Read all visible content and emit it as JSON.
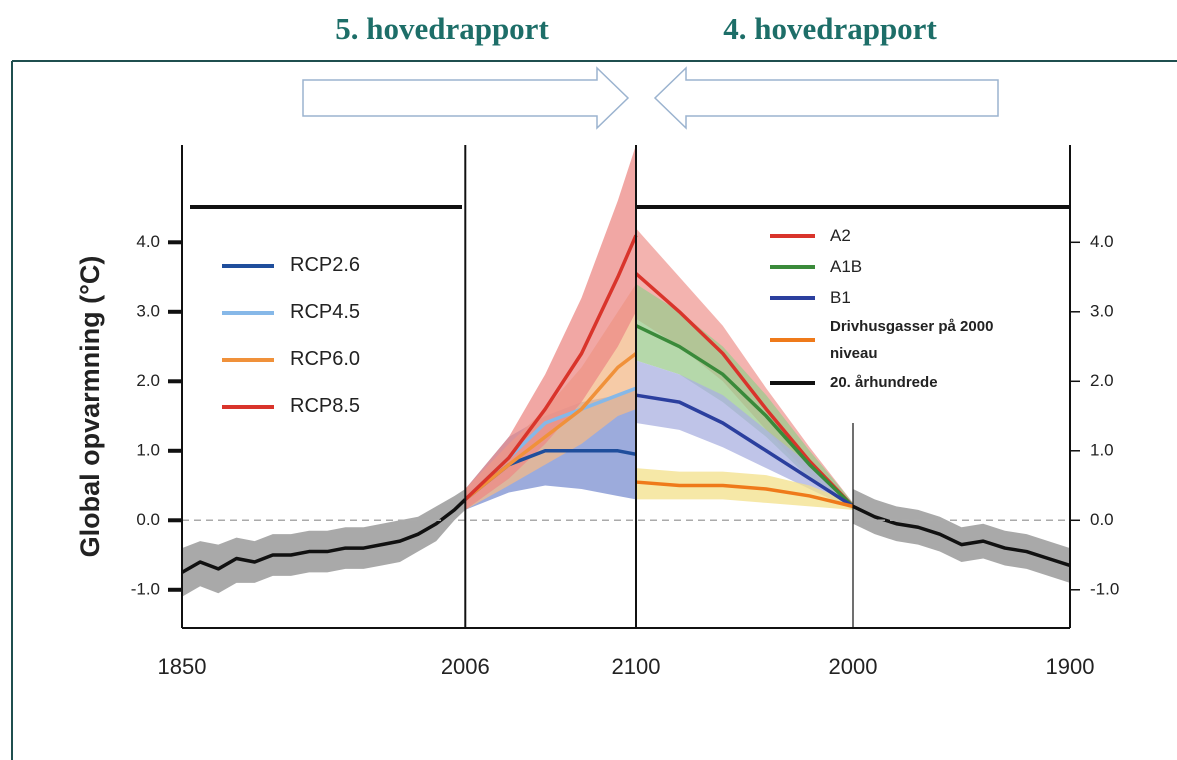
{
  "headers": [
    "5. hovedrapport",
    "4. hovedrapport"
  ],
  "chart_data": [
    {
      "type": "line",
      "ylabel": "Global opvarmning (°C)",
      "xlim": [
        1850,
        2100
      ],
      "ylim": [
        -1.55,
        5.4
      ],
      "xticks": [
        1850,
        2006,
        2100
      ],
      "yticks": [
        {
          "value": -1,
          "label": "-1.0"
        },
        {
          "value": 0,
          "label": "0.0"
        },
        {
          "value": 1,
          "label": "1.0"
        },
        {
          "value": 2,
          "label": "2.0"
        },
        {
          "value": 3,
          "label": "3.0"
        },
        {
          "value": 4,
          "label": "4.0"
        }
      ],
      "legend": "upper left",
      "series": [
        {
          "color": "#111111",
          "band_color": "#8c8c8c",
          "x": [
            1850,
            1860,
            1870,
            1880,
            1890,
            1900,
            1910,
            1920,
            1930,
            1940,
            1950,
            1960,
            1970,
            1980,
            1990,
            2000,
            2006
          ],
          "values": [
            -0.75,
            -0.6,
            -0.7,
            -0.55,
            -0.6,
            -0.5,
            -0.5,
            -0.45,
            -0.45,
            -0.4,
            -0.4,
            -0.35,
            -0.3,
            -0.2,
            -0.05,
            0.15,
            0.3
          ],
          "lower": [
            -1.1,
            -0.95,
            -1.05,
            -0.9,
            -0.9,
            -0.8,
            -0.8,
            -0.75,
            -0.75,
            -0.7,
            -0.7,
            -0.65,
            -0.6,
            -0.45,
            -0.3,
            0.0,
            0.15
          ],
          "upper": [
            -0.4,
            -0.3,
            -0.35,
            -0.25,
            -0.3,
            -0.2,
            -0.2,
            -0.15,
            -0.15,
            -0.1,
            -0.1,
            -0.05,
            0.0,
            0.05,
            0.2,
            0.35,
            0.45
          ]
        },
        {
          "name": "RCP2.6",
          "color": "#1f4e9c",
          "band_color": "#7b8fd0",
          "x": [
            2006,
            2030,
            2050,
            2070,
            2090,
            2100
          ],
          "values": [
            0.3,
            0.8,
            1.0,
            1.0,
            1.0,
            0.95
          ],
          "lower": [
            0.15,
            0.4,
            0.5,
            0.45,
            0.35,
            0.3
          ],
          "upper": [
            0.45,
            1.2,
            1.5,
            1.7,
            1.8,
            1.9
          ]
        },
        {
          "name": "RCP4.5",
          "color": "#86b8e8",
          "x": [
            2006,
            2030,
            2050,
            2070,
            2090,
            2100
          ],
          "values": [
            0.3,
            0.9,
            1.4,
            1.6,
            1.8,
            1.9
          ]
        },
        {
          "name": "RCP6.0",
          "color": "#f0913a",
          "band_color": "#f3b98a",
          "x": [
            2006,
            2030,
            2050,
            2070,
            2090,
            2100
          ],
          "values": [
            0.3,
            0.8,
            1.2,
            1.6,
            2.2,
            2.4
          ],
          "lower": [
            0.15,
            0.5,
            0.8,
            1.1,
            1.5,
            1.6
          ],
          "upper": [
            0.45,
            1.1,
            1.6,
            2.2,
            3.0,
            3.4
          ]
        },
        {
          "name": "RCP8.5",
          "color": "#d9342b",
          "band_color": "#ec8a86",
          "x": [
            2006,
            2030,
            2050,
            2070,
            2090,
            2100
          ],
          "values": [
            0.3,
            0.9,
            1.6,
            2.4,
            3.5,
            4.1
          ],
          "lower": [
            0.15,
            0.6,
            1.1,
            1.7,
            2.5,
            3.0
          ],
          "upper": [
            0.45,
            1.2,
            2.1,
            3.2,
            4.6,
            5.4
          ]
        }
      ]
    },
    {
      "type": "line",
      "xlim": [
        2100,
        1900
      ],
      "ylim": [
        -1.55,
        5.4
      ],
      "xticks": [
        2000,
        1900
      ],
      "yticks": [
        {
          "value": -1,
          "label": "-1.0"
        },
        {
          "value": 0,
          "label": "0.0"
        },
        {
          "value": 1,
          "label": "1.0"
        },
        {
          "value": 2,
          "label": "2.0"
        },
        {
          "value": 3,
          "label": "3.0"
        },
        {
          "value": 4,
          "label": "4.0"
        }
      ],
      "legend": "upper right",
      "series": [
        {
          "name": "A2",
          "color": "#d9342b",
          "band_color": "#ef9a94",
          "x": [
            2100,
            2080,
            2060,
            2040,
            2020,
            2000
          ],
          "values": [
            3.55,
            3.0,
            2.4,
            1.6,
            0.85,
            0.2
          ],
          "lower": [
            2.9,
            2.5,
            2.0,
            1.3,
            0.65,
            0.15
          ],
          "upper": [
            4.2,
            3.5,
            2.8,
            1.9,
            1.05,
            0.25
          ]
        },
        {
          "name": "A1B",
          "color": "#3a8a3a",
          "band_color": "#9ccb8e",
          "x": [
            2100,
            2080,
            2060,
            2040,
            2020,
            2000
          ],
          "values": [
            2.8,
            2.5,
            2.1,
            1.5,
            0.8,
            0.2
          ],
          "lower": [
            2.3,
            2.1,
            1.7,
            1.2,
            0.6,
            0.15
          ],
          "upper": [
            3.4,
            3.0,
            2.5,
            1.8,
            1.0,
            0.25
          ]
        },
        {
          "name": "B1",
          "color": "#2b3f9e",
          "band_color": "#a9b0e0",
          "x": [
            2100,
            2080,
            2060,
            2040,
            2020,
            2000
          ],
          "values": [
            1.8,
            1.7,
            1.4,
            1.0,
            0.6,
            0.2
          ],
          "lower": [
            1.4,
            1.3,
            1.05,
            0.75,
            0.45,
            0.15
          ],
          "upper": [
            2.3,
            2.1,
            1.8,
            1.3,
            0.8,
            0.25
          ]
        },
        {
          "name": "Drivhusgasser på 2000 niveau",
          "color": "#ef7a1a",
          "band_color": "#f3e08a",
          "x": [
            2100,
            2080,
            2060,
            2040,
            2020,
            2000
          ],
          "values": [
            0.55,
            0.5,
            0.5,
            0.45,
            0.35,
            0.2
          ],
          "lower": [
            0.3,
            0.3,
            0.3,
            0.25,
            0.2,
            0.15
          ],
          "upper": [
            0.75,
            0.7,
            0.7,
            0.65,
            0.5,
            0.25
          ]
        },
        {
          "name": "20. århundrede",
          "color": "#111111",
          "band_color": "#8c8c8c",
          "x": [
            2000,
            1990,
            1980,
            1970,
            1960,
            1950,
            1940,
            1930,
            1920,
            1910,
            1900
          ],
          "values": [
            0.2,
            0.05,
            -0.05,
            -0.1,
            -0.2,
            -0.35,
            -0.3,
            -0.4,
            -0.45,
            -0.55,
            -0.65
          ],
          "lower": [
            -0.05,
            -0.2,
            -0.3,
            -0.35,
            -0.45,
            -0.6,
            -0.55,
            -0.65,
            -0.7,
            -0.8,
            -0.9
          ],
          "upper": [
            0.45,
            0.3,
            0.2,
            0.15,
            0.05,
            -0.1,
            -0.05,
            -0.15,
            -0.2,
            -0.3,
            -0.4
          ]
        }
      ]
    }
  ]
}
